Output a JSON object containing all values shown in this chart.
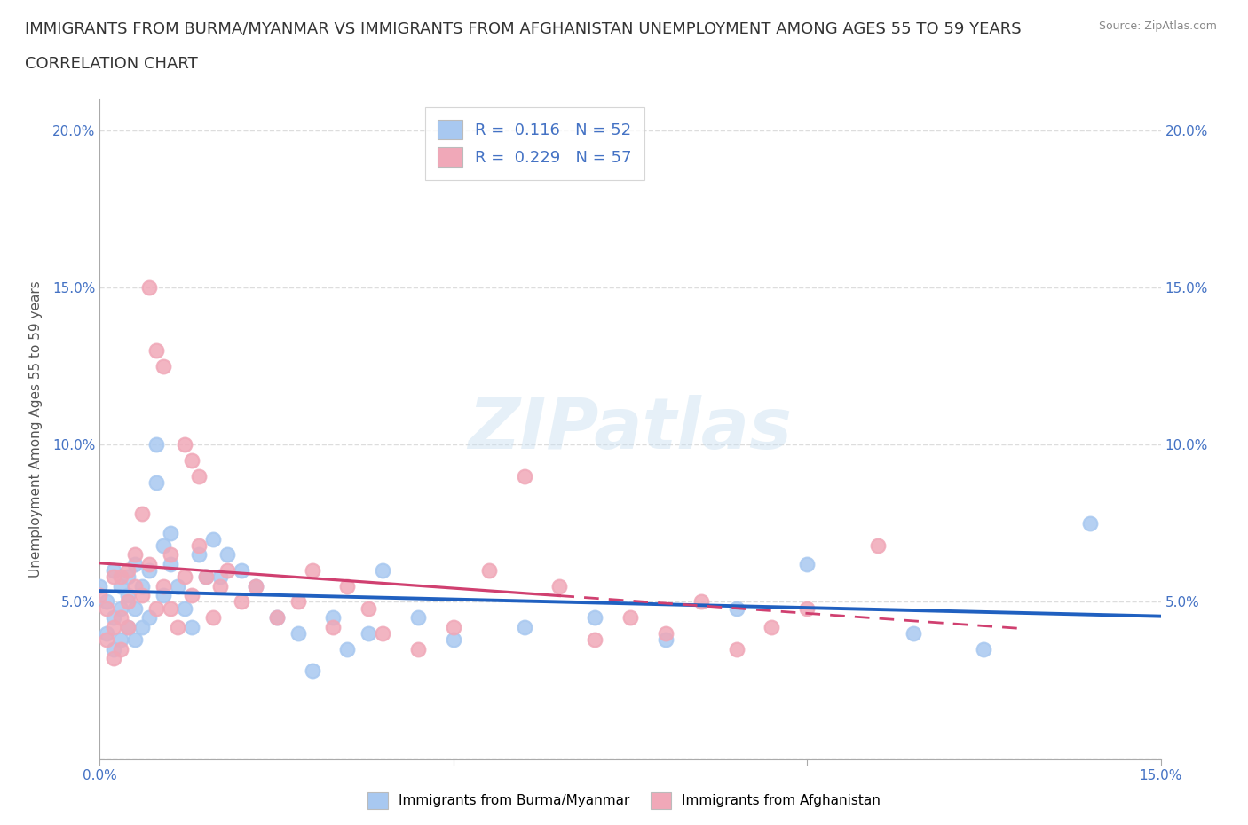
{
  "title_line1": "IMMIGRANTS FROM BURMA/MYANMAR VS IMMIGRANTS FROM AFGHANISTAN UNEMPLOYMENT AMONG AGES 55 TO 59 YEARS",
  "title_line2": "CORRELATION CHART",
  "source": "Source: ZipAtlas.com",
  "ylabel": "Unemployment Among Ages 55 to 59 years",
  "xlim": [
    0.0,
    0.15
  ],
  "ylim": [
    0.0,
    0.21
  ],
  "yticks": [
    0.0,
    0.05,
    0.1,
    0.15,
    0.2
  ],
  "ytick_labels": [
    "",
    "5.0%",
    "10.0%",
    "15.0%",
    "20.0%"
  ],
  "xticks": [
    0.0,
    0.05,
    0.1,
    0.15
  ],
  "xtick_labels": [
    "0.0%",
    "",
    "",
    "15.0%"
  ],
  "watermark": "ZIPatlas",
  "color_burma": "#a8c8f0",
  "color_afghanistan": "#f0a8b8",
  "line_color_burma": "#2060c0",
  "line_color_afghanistan": "#d04070",
  "scatter_alpha": 0.85,
  "R_burma": 0.116,
  "N_burma": 52,
  "R_afghanistan": 0.229,
  "N_afghanistan": 57,
  "burma_x": [
    0.0,
    0.001,
    0.001,
    0.002,
    0.002,
    0.002,
    0.003,
    0.003,
    0.003,
    0.004,
    0.004,
    0.004,
    0.005,
    0.005,
    0.005,
    0.006,
    0.006,
    0.007,
    0.007,
    0.008,
    0.008,
    0.009,
    0.009,
    0.01,
    0.01,
    0.011,
    0.012,
    0.013,
    0.014,
    0.015,
    0.016,
    0.017,
    0.018,
    0.02,
    0.022,
    0.025,
    0.028,
    0.03,
    0.033,
    0.035,
    0.038,
    0.04,
    0.045,
    0.05,
    0.06,
    0.07,
    0.08,
    0.09,
    0.1,
    0.115,
    0.125,
    0.14
  ],
  "burma_y": [
    0.055,
    0.05,
    0.04,
    0.06,
    0.045,
    0.035,
    0.055,
    0.048,
    0.038,
    0.052,
    0.042,
    0.058,
    0.048,
    0.062,
    0.038,
    0.055,
    0.042,
    0.06,
    0.045,
    0.088,
    0.1,
    0.052,
    0.068,
    0.062,
    0.072,
    0.055,
    0.048,
    0.042,
    0.065,
    0.058,
    0.07,
    0.058,
    0.065,
    0.06,
    0.055,
    0.045,
    0.04,
    0.028,
    0.045,
    0.035,
    0.04,
    0.06,
    0.045,
    0.038,
    0.042,
    0.045,
    0.038,
    0.048,
    0.062,
    0.04,
    0.035,
    0.075
  ],
  "afghanistan_x": [
    0.0,
    0.001,
    0.001,
    0.002,
    0.002,
    0.002,
    0.003,
    0.003,
    0.003,
    0.004,
    0.004,
    0.004,
    0.005,
    0.005,
    0.006,
    0.006,
    0.007,
    0.007,
    0.008,
    0.008,
    0.009,
    0.009,
    0.01,
    0.01,
    0.011,
    0.012,
    0.013,
    0.014,
    0.015,
    0.016,
    0.017,
    0.018,
    0.02,
    0.022,
    0.025,
    0.028,
    0.03,
    0.033,
    0.035,
    0.038,
    0.012,
    0.013,
    0.014,
    0.04,
    0.045,
    0.05,
    0.055,
    0.06,
    0.065,
    0.07,
    0.075,
    0.08,
    0.085,
    0.09,
    0.095,
    0.1,
    0.11
  ],
  "afghanistan_y": [
    0.052,
    0.048,
    0.038,
    0.058,
    0.042,
    0.032,
    0.058,
    0.045,
    0.035,
    0.05,
    0.06,
    0.042,
    0.055,
    0.065,
    0.078,
    0.052,
    0.15,
    0.062,
    0.048,
    0.13,
    0.125,
    0.055,
    0.048,
    0.065,
    0.042,
    0.058,
    0.052,
    0.068,
    0.058,
    0.045,
    0.055,
    0.06,
    0.05,
    0.055,
    0.045,
    0.05,
    0.06,
    0.042,
    0.055,
    0.048,
    0.1,
    0.095,
    0.09,
    0.04,
    0.035,
    0.042,
    0.06,
    0.09,
    0.055,
    0.038,
    0.045,
    0.04,
    0.05,
    0.035,
    0.042,
    0.048,
    0.068
  ],
  "background_color": "#ffffff",
  "grid_color": "#dddddd",
  "title_fontsize": 13,
  "axis_label_fontsize": 11,
  "tick_fontsize": 11,
  "tick_color": "#4472c4"
}
